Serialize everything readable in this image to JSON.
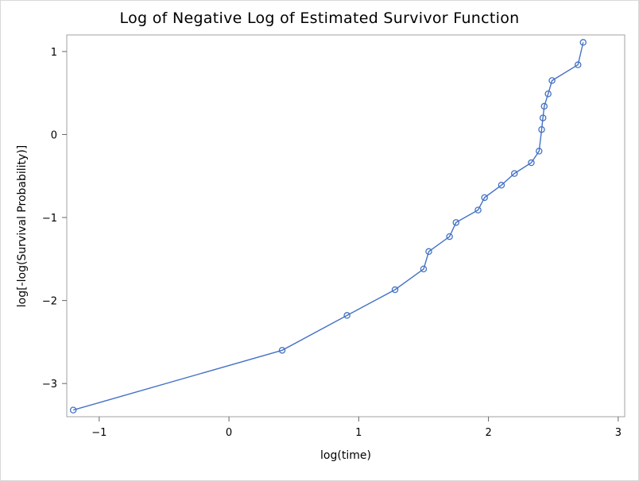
{
  "chart_data": {
    "type": "line",
    "title": "Log of Negative Log of Estimated Survivor Function",
    "xlabel": "log(time)",
    "ylabel": "log[-log(Survival Probability)]",
    "xlim": [
      -1.25,
      3.05
    ],
    "ylim": [
      -3.4,
      1.2
    ],
    "xticks": [
      -1,
      0,
      1,
      2,
      3
    ],
    "yticks": [
      -3,
      -2,
      -1,
      0,
      1
    ],
    "xtick_labels": [
      "−1",
      "0",
      "1",
      "2",
      "3"
    ],
    "ytick_labels": [
      "−3",
      "−2",
      "−1",
      "0",
      "1"
    ],
    "grid": false,
    "legend": "none",
    "marker": "circle",
    "line_color": "#4472C4",
    "series": [
      {
        "x": [
          -1.2,
          0.41,
          0.91,
          1.28,
          1.5,
          1.54,
          1.7,
          1.75,
          1.92,
          1.97,
          2.1,
          2.2,
          2.33,
          2.39,
          2.41,
          2.42,
          2.43,
          2.46,
          2.49,
          2.69,
          2.73
        ],
        "y": [
          -3.32,
          -2.6,
          -2.18,
          -1.87,
          -1.62,
          -1.41,
          -1.23,
          -1.06,
          -0.91,
          -0.76,
          -0.61,
          -0.47,
          -0.34,
          -0.2,
          0.06,
          0.2,
          0.34,
          0.49,
          0.65,
          0.84,
          1.11
        ]
      }
    ]
  }
}
